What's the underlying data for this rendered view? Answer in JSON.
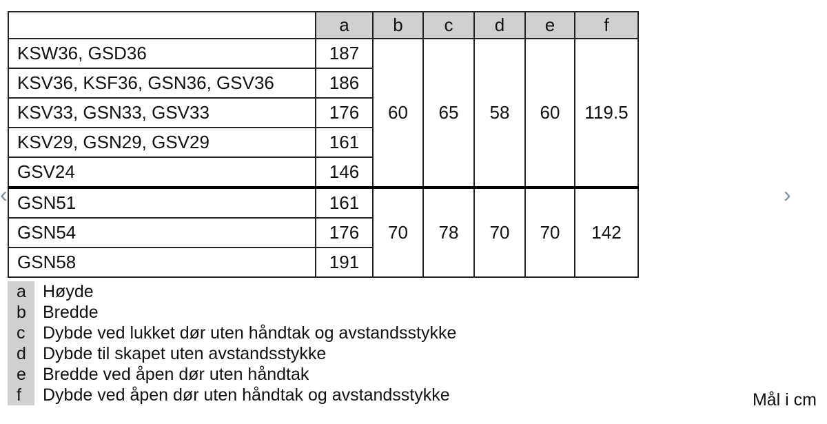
{
  "table": {
    "headers": [
      "",
      "a",
      "b",
      "c",
      "d",
      "e",
      "f"
    ],
    "groups": [
      {
        "rows": [
          {
            "name": "KSW36, GSD36",
            "a": "187"
          },
          {
            "name": "KSV36, KSF36, GSN36, GSV36",
            "a": "186"
          },
          {
            "name": "KSV33, GSN33, GSV33",
            "a": "176"
          },
          {
            "name": "KSV29, GSN29, GSV29",
            "a": "161"
          },
          {
            "name": "GSV24",
            "a": "146"
          }
        ],
        "shared": {
          "b": "60",
          "c": "65",
          "d": "58",
          "e": "60",
          "f": "119.5"
        }
      },
      {
        "rows": [
          {
            "name": "GSN51",
            "a": "161"
          },
          {
            "name": "GSN54",
            "a": "176"
          },
          {
            "name": "GSN58",
            "a": "191"
          }
        ],
        "shared": {
          "b": "70",
          "c": "78",
          "d": "70",
          "e": "70",
          "f": "142"
        }
      }
    ]
  },
  "legend": [
    {
      "key": "a",
      "text": "Høyde"
    },
    {
      "key": "b",
      "text": "Bredde"
    },
    {
      "key": "c",
      "text": "Dybde ved lukket dør uten håndtak og avstandsstykke"
    },
    {
      "key": "d",
      "text": "Dybde til skapet uten avstandsstykke"
    },
    {
      "key": "e",
      "text": "Bredde ved åpen dør uten håndtak"
    },
    {
      "key": "f",
      "text": "Dybde ved åpen dør uten håndtak og avstandsstykke"
    }
  ],
  "unit_note": "Mål i cm",
  "carousel": {
    "prev_icon": "chevron-left-icon",
    "next_icon": "chevron-right-icon",
    "prev_glyph": "‹",
    "next_glyph": "›",
    "arrow_color": "#7a8ea6"
  }
}
